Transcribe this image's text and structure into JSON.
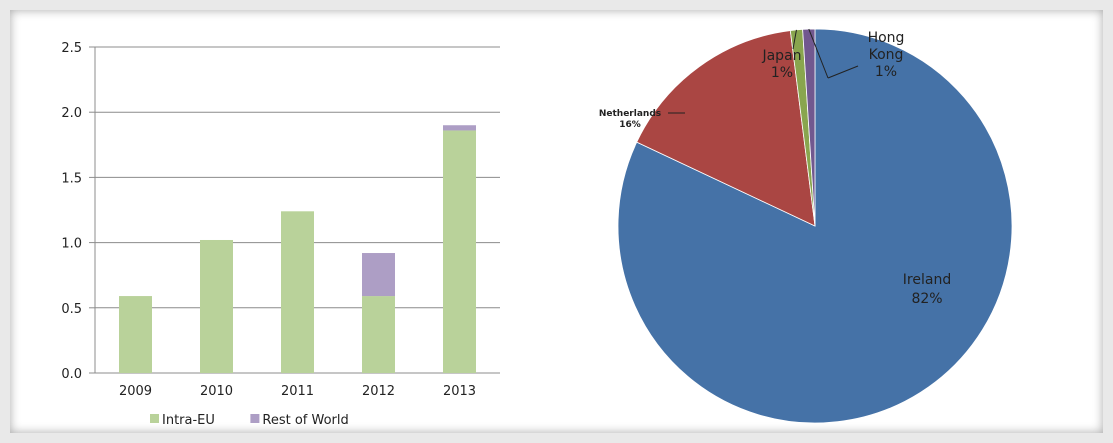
{
  "chart_data": [
    {
      "type": "bar",
      "stacked": true,
      "categories": [
        "2009",
        "2010",
        "2011",
        "2012",
        "2013"
      ],
      "series": [
        {
          "name": "Intra-EU",
          "color": "#b9d29a",
          "values": [
            0.59,
            1.02,
            1.24,
            0.59,
            1.86
          ]
        },
        {
          "name": "Rest of World",
          "color": "#ad9ec5",
          "values": [
            0,
            0,
            0,
            0.33,
            0.04
          ]
        }
      ],
      "y_ticks": [
        "0.0",
        "0.5",
        "1.0",
        "1.5",
        "2.0",
        "2.5"
      ],
      "ylim": [
        0,
        2.5
      ],
      "grid": true,
      "legend_position": "bottom"
    },
    {
      "type": "pie",
      "slices": [
        {
          "name": "Ireland",
          "percent_label": "82%",
          "value": 82,
          "color": "#4572a7"
        },
        {
          "name": "Netherlands",
          "percent_label": "16%",
          "value": 16,
          "color": "#aa4643"
        },
        {
          "name": "Japan",
          "percent_label": "1%",
          "value": 1,
          "color": "#89a54e"
        },
        {
          "name": "Hong Kong",
          "name_lines": [
            "Hong",
            "Kong"
          ],
          "percent_label": "1%",
          "value": 1,
          "color": "#71588f"
        }
      ]
    }
  ]
}
